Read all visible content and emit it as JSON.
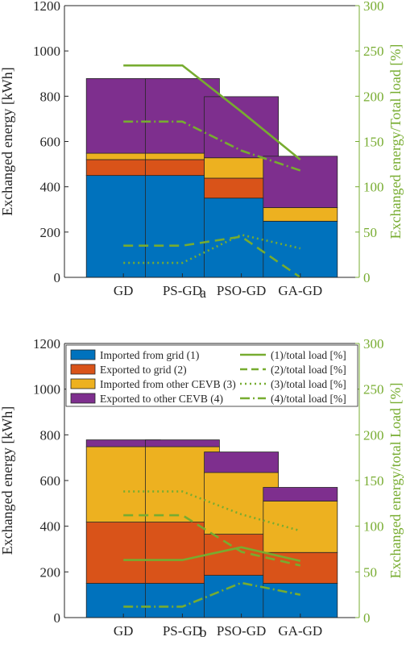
{
  "figure": {
    "panels": [
      {
        "caption": "a"
      },
      {
        "caption": "b"
      }
    ],
    "legend": {
      "bar_entries": [
        "Imported from grid (1)",
        "Exported to grid (2)",
        "Imported from other CEVB (3)",
        "Exported to other CEVB (4)"
      ],
      "line_entries": [
        "(1)/total load [%]",
        "(2)/total load [%]",
        "(3)/total load [%]",
        "(4)/total load [%]"
      ]
    }
  },
  "colors": {
    "imported_grid": "#0072BD",
    "exported_grid": "#D95319",
    "imported_cevb": "#EDB120",
    "exported_cevb": "#7E2F8E",
    "lines": "#77AC30",
    "right_axis": "#77AC30"
  },
  "chart_data": [
    {
      "type": "bar",
      "stacked": true,
      "caption": "a",
      "categories": [
        "GD",
        "PS-GD",
        "PSO-GD",
        "GA-GD"
      ],
      "ylabel": "Exchanged energy [kWh]",
      "ylim": [
        0,
        1200
      ],
      "yticks": [
        0,
        200,
        400,
        600,
        800,
        1000,
        1200
      ],
      "y2label": "Exchanged energy/Total load [%]",
      "y2lim": [
        0,
        300
      ],
      "y2ticks": [
        0,
        50,
        100,
        150,
        200,
        250,
        300
      ],
      "grid": false,
      "series": [
        {
          "name": "Imported from grid (1)",
          "values": [
            450,
            450,
            350,
            248
          ]
        },
        {
          "name": "Exported to grid (2)",
          "values": [
            70,
            70,
            88,
            0
          ]
        },
        {
          "name": "Imported from other CEVB (3)",
          "values": [
            28,
            28,
            90,
            60
          ]
        },
        {
          "name": "Exported to other CEVB (4)",
          "values": [
            330,
            330,
            270,
            227
          ]
        }
      ],
      "line_series": [
        {
          "name": "(1)/total load [%]",
          "style": "solid",
          "values": [
            234,
            234,
            183,
            130
          ]
        },
        {
          "name": "(2)/total load [%]",
          "style": "dashed",
          "values": [
            35,
            35,
            45,
            0
          ]
        },
        {
          "name": "(3)/total load [%]",
          "style": "dotted",
          "values": [
            16,
            16,
            47,
            32
          ]
        },
        {
          "name": "(4)/total load [%]",
          "style": "dashdot",
          "values": [
            172,
            172,
            140,
            118
          ]
        }
      ]
    },
    {
      "type": "bar",
      "stacked": true,
      "caption": "b",
      "categories": [
        "GD",
        "PS-GD",
        "PSO-GD",
        "GA-GD"
      ],
      "ylabel": "Exchanged energy [kWh]",
      "ylim": [
        0,
        1200
      ],
      "yticks": [
        0,
        200,
        400,
        600,
        800,
        1000,
        1200
      ],
      "y2label": "Exchanged energy/total Load [%]",
      "y2lim": [
        0,
        300
      ],
      "y2ticks": [
        0,
        50,
        100,
        150,
        200,
        250,
        300
      ],
      "grid": false,
      "legend_position": "top",
      "series": [
        {
          "name": "Imported from grid (1)",
          "values": [
            150,
            150,
            185,
            150
          ]
        },
        {
          "name": "Exported to grid (2)",
          "values": [
            268,
            268,
            180,
            135
          ]
        },
        {
          "name": "Imported from other CEVB (3)",
          "values": [
            330,
            330,
            270,
            225
          ]
        },
        {
          "name": "Exported to other CEVB (4)",
          "values": [
            30,
            30,
            90,
            60
          ]
        }
      ],
      "line_series": [
        {
          "name": "(1)/total load [%]",
          "style": "solid",
          "values": [
            63,
            63,
            77,
            62
          ]
        },
        {
          "name": "(2)/total load [%]",
          "style": "dashed",
          "values": [
            112,
            112,
            72,
            57
          ]
        },
        {
          "name": "(3)/total load [%]",
          "style": "dotted",
          "values": [
            138,
            138,
            113,
            95
          ]
        },
        {
          "name": "(4)/total load [%]",
          "style": "dashdot",
          "values": [
            12,
            12,
            38,
            25
          ]
        }
      ]
    }
  ]
}
